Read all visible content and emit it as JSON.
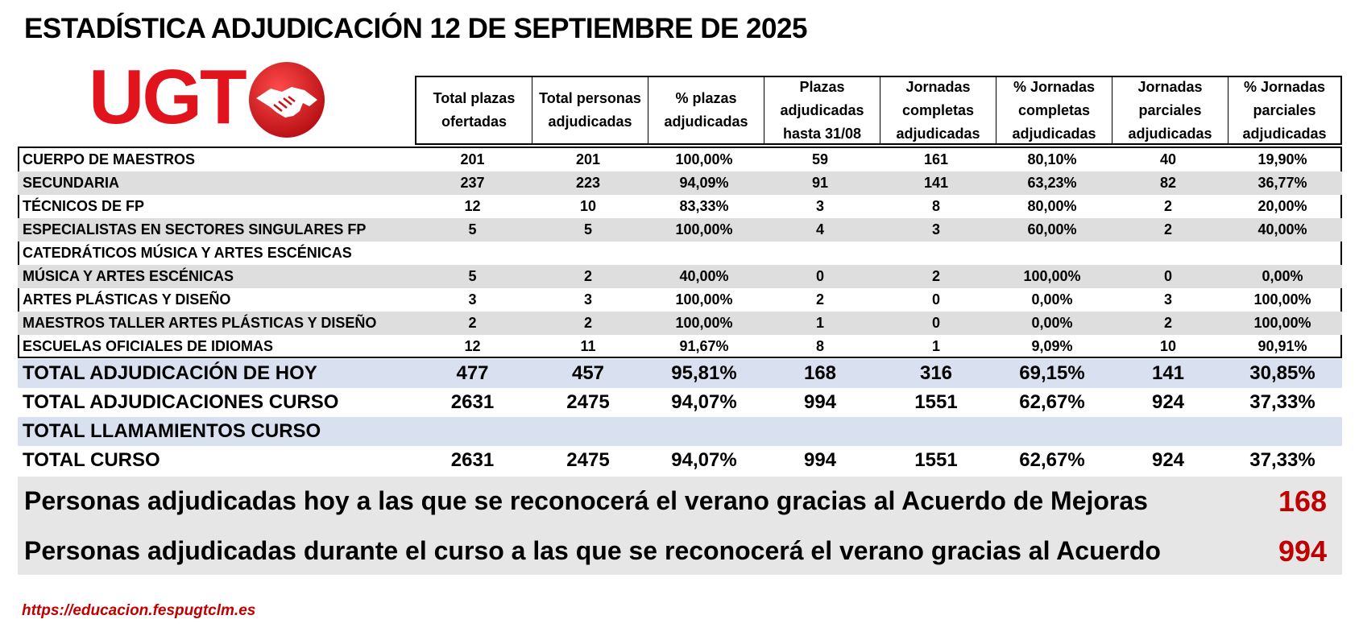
{
  "title": "ESTADÍSTICA ADJUDICACIÓN 12 DE SEPTIEMBRE DE 2025",
  "logo": {
    "text": "UGT",
    "icon": "handshake-icon",
    "color": "#e1141e"
  },
  "columns": [
    "Total plazas\nofertadas",
    "Total personas\nadjudicadas",
    "% plazas\nadjudicadas",
    "Plazas\nadjudicadas\nhasta 31/08",
    "Jornadas\ncompletas\nadjudicadas",
    "% Jornadas\ncompletas\nadjudicadas",
    "Jornadas\nparciales\nadjudicadas",
    "% Jornadas\nparciales\nadjudicadas"
  ],
  "rows": [
    {
      "label": "CUERPO DE MAESTROS",
      "values": [
        "201",
        "201",
        "100,00%",
        "59",
        "161",
        "80,10%",
        "40",
        "19,90%"
      ]
    },
    {
      "label": "SECUNDARIA",
      "values": [
        "237",
        "223",
        "94,09%",
        "91",
        "141",
        "63,23%",
        "82",
        "36,77%"
      ]
    },
    {
      "label": "TÉCNICOS DE FP",
      "values": [
        "12",
        "10",
        "83,33%",
        "3",
        "8",
        "80,00%",
        "2",
        "20,00%"
      ]
    },
    {
      "label": "ESPECIALISTAS EN SECTORES SINGULARES FP",
      "values": [
        "5",
        "5",
        "100,00%",
        "4",
        "3",
        "60,00%",
        "2",
        "40,00%"
      ]
    },
    {
      "label": "CATEDRÁTICOS MÚSICA Y ARTES ESCÉNICAS",
      "values": [
        "",
        "",
        "",
        "",
        "",
        "",
        "",
        ""
      ]
    },
    {
      "label": "MÚSICA Y ARTES ESCÉNICAS",
      "values": [
        "5",
        "2",
        "40,00%",
        "0",
        "2",
        "100,00%",
        "0",
        "0,00%"
      ]
    },
    {
      "label": "ARTES PLÁSTICAS Y DISEÑO",
      "values": [
        "3",
        "3",
        "100,00%",
        "2",
        "0",
        "0,00%",
        "3",
        "100,00%"
      ]
    },
    {
      "label": "MAESTROS TALLER ARTES PLÁSTICAS Y DISEÑO",
      "values": [
        "2",
        "2",
        "100,00%",
        "1",
        "0",
        "0,00%",
        "2",
        "100,00%"
      ]
    },
    {
      "label": "ESCUELAS OFICIALES DE IDIOMAS",
      "values": [
        "12",
        "11",
        "91,67%",
        "8",
        "1",
        "9,09%",
        "10",
        "90,91%"
      ]
    }
  ],
  "totals": [
    {
      "label": "TOTAL ADJUDICACIÓN DE HOY",
      "values": [
        "477",
        "457",
        "95,81%",
        "168",
        "316",
        "69,15%",
        "141",
        "30,85%"
      ]
    },
    {
      "label": "TOTAL ADJUDICACIONES CURSO",
      "values": [
        "2631",
        "2475",
        "94,07%",
        "994",
        "1551",
        "62,67%",
        "924",
        "37,33%"
      ]
    },
    {
      "label": "TOTAL LLAMAMIENTOS CURSO",
      "values": [
        "",
        "",
        "",
        "",
        "",
        "",
        "",
        ""
      ]
    },
    {
      "label": "TOTAL CURSO",
      "values": [
        "2631",
        "2475",
        "94,07%",
        "994",
        "1551",
        "62,67%",
        "924",
        "37,33%"
      ]
    }
  ],
  "summary": [
    {
      "label": "Personas adjudicadas hoy a las que se reconocerá el verano gracias al Acuerdo de Mejoras",
      "value": "168"
    },
    {
      "label": "Personas adjudicadas durante el curso a las que se reconocerá el verano gracias al Acuerdo",
      "value": "994"
    }
  ],
  "url": "https://educacion.fespugtclm.es",
  "colors": {
    "accent_red": "#c00000",
    "row_shade": "#dedede",
    "total_blue": "#d9e1f1",
    "summary_bg": "#e6e6e6"
  }
}
